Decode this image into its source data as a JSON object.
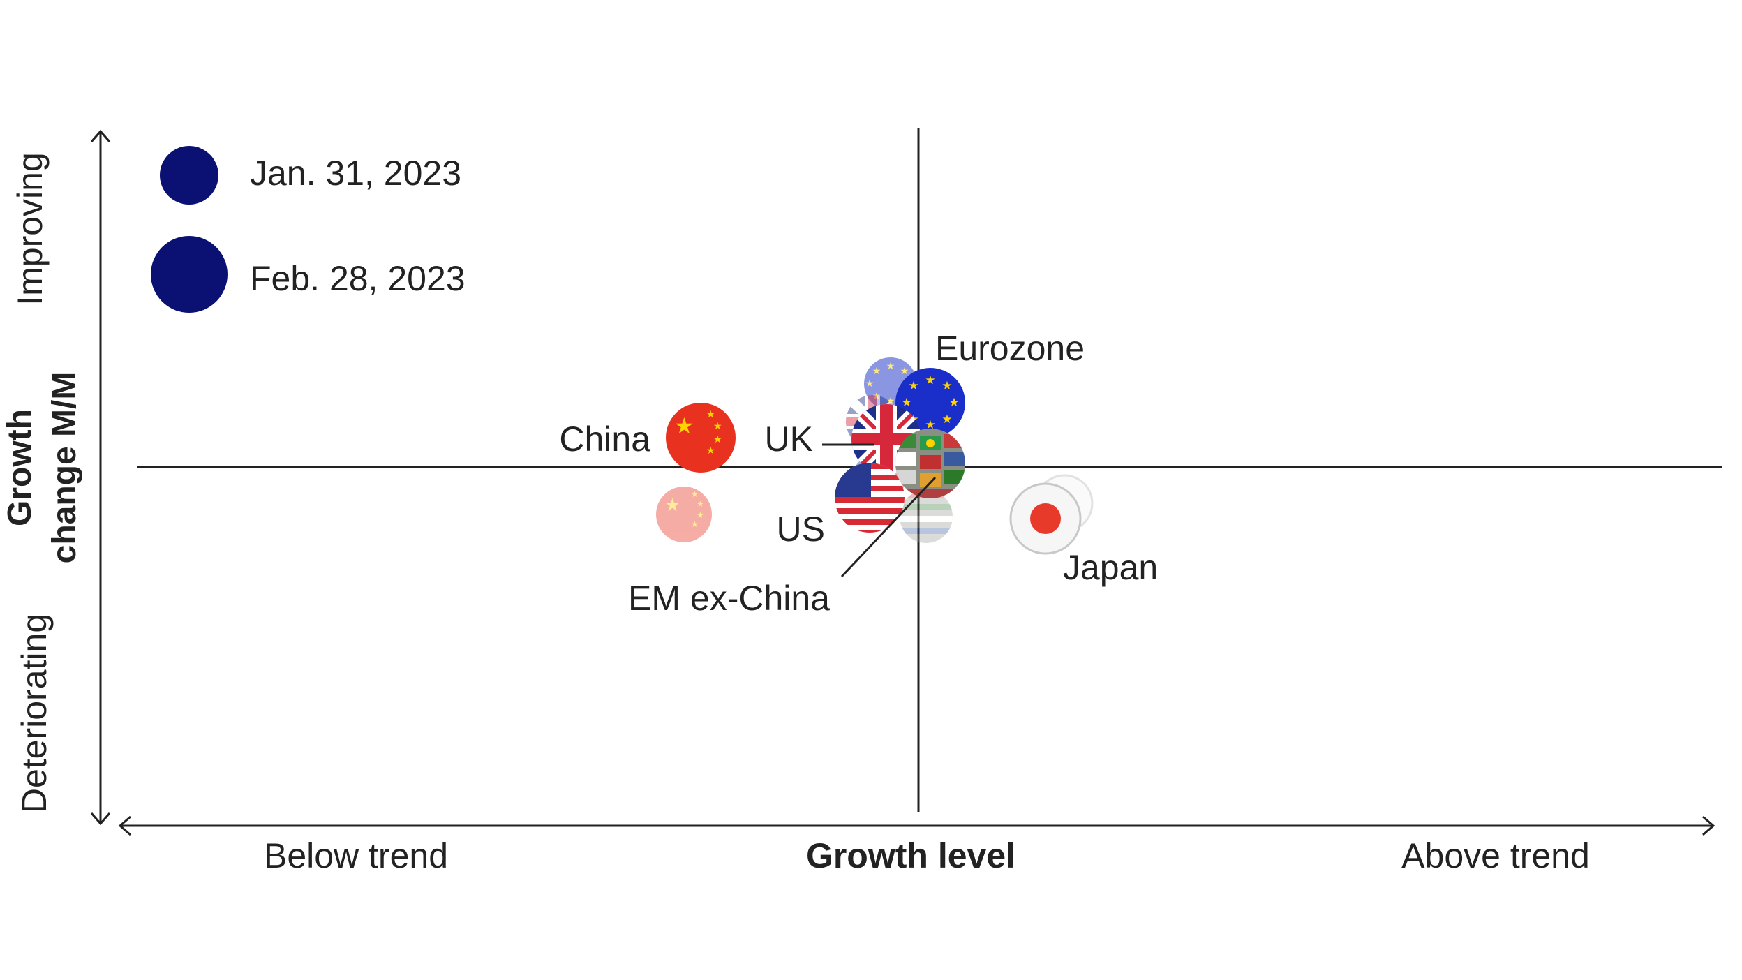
{
  "chart_data": {
    "type": "scatter",
    "title": "",
    "xlabel": "Growth level",
    "ylabel_lines": [
      "Growth",
      "change M/M"
    ],
    "x_low_label": "Below trend",
    "x_high_label": "Above trend",
    "y_high_label": "Improving",
    "y_low_label": "Deteriorating",
    "xlim": [
      -100,
      100
    ],
    "ylim": [
      -100,
      100
    ],
    "legend": {
      "placement": "top-left",
      "entries": [
        {
          "label": "Jan. 31, 2023",
          "marker": "small",
          "color": "#0a1172"
        },
        {
          "label": "Feb. 28, 2023",
          "marker": "large",
          "color": "#0a1172"
        }
      ]
    },
    "series": [
      {
        "name": "Jan. 31, 2023",
        "points": [
          {
            "region": "Eurozone",
            "x": -3.6,
            "y": 24
          },
          {
            "region": "UK",
            "x": -4.6,
            "y": 14
          },
          {
            "region": "China",
            "x": -29.5,
            "y": -14
          },
          {
            "region": "US",
            "x": -5.2,
            "y": -4
          },
          {
            "region": "EM ex-China",
            "x": 0.5,
            "y": -15
          },
          {
            "region": "Japan",
            "x": 18.7,
            "y": -10
          }
        ]
      },
      {
        "name": "Feb. 28, 2023",
        "points": [
          {
            "region": "Eurozone",
            "x": 1.2,
            "y": 19
          },
          {
            "region": "UK",
            "x": -4.0,
            "y": 9
          },
          {
            "region": "China",
            "x": -27.8,
            "y": 9
          },
          {
            "region": "US",
            "x": -6.5,
            "y": -9
          },
          {
            "region": "EM ex-China",
            "x": 1.2,
            "y": 2
          },
          {
            "region": "Japan",
            "x": 16.0,
            "y": -15
          }
        ]
      }
    ],
    "point_labels": [
      "Eurozone",
      "China",
      "UK",
      "US",
      "EM ex-China",
      "Japan"
    ]
  },
  "colors": {
    "legend_dot": "#0a1172",
    "axis": "#222222",
    "eurozone": "#1a2fc9",
    "china": "#e8321f",
    "uk_blue": "#1e2f8a",
    "uk_red": "#d6283a",
    "us_blue": "#283a8f",
    "us_red": "#d62a35",
    "em": "#8a8f84",
    "japan_red": "#e83a2a"
  }
}
